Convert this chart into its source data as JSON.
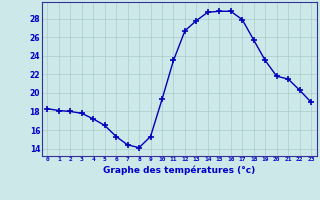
{
  "hours": [
    0,
    1,
    2,
    3,
    4,
    5,
    6,
    7,
    8,
    9,
    10,
    11,
    12,
    13,
    14,
    15,
    16,
    17,
    18,
    19,
    20,
    21,
    22,
    23
  ],
  "temperatures": [
    18.3,
    18.1,
    18.0,
    17.8,
    17.2,
    16.5,
    15.3,
    14.4,
    14.1,
    15.3,
    19.3,
    23.5,
    26.7,
    27.8,
    28.7,
    28.8,
    28.8,
    27.9,
    25.7,
    23.5,
    21.8,
    21.5,
    20.3,
    19.0
  ],
  "line_color": "#0000bb",
  "marker": "+",
  "marker_size": 4,
  "marker_lw": 1.2,
  "bg_color": "#cce8e8",
  "grid_color": "#aacccc",
  "xlabel": "Graphe des températures (°c)",
  "ylabel_ticks": [
    14,
    16,
    18,
    20,
    22,
    24,
    26,
    28
  ],
  "xlim": [
    -0.5,
    23.5
  ],
  "ylim": [
    13.2,
    29.8
  ],
  "xlabel_color": "#0000cc",
  "tick_label_color": "#0000cc",
  "line_width": 1.0
}
